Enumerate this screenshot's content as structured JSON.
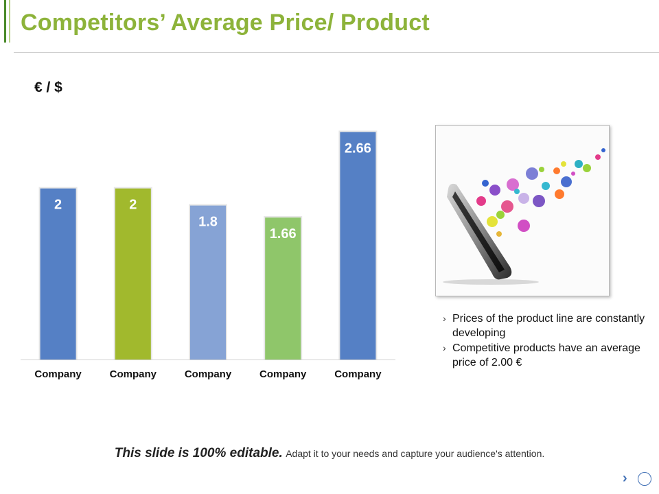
{
  "slide": {
    "title": "Competitors’ Average Price/ Product"
  },
  "chart_data": {
    "type": "bar",
    "title": "",
    "ylabel": "€ / $",
    "xlabel": "",
    "categories": [
      "Company",
      "Company",
      "Company",
      "Company",
      "Company"
    ],
    "values": [
      2,
      2,
      1.8,
      1.66,
      2.66
    ],
    "data_labels": [
      "2",
      "2",
      "1.8",
      "1.66",
      "2.66"
    ],
    "colors": [
      "#5580c5",
      "#a1b92d",
      "#86a3d5",
      "#8fc66a",
      "#5580c5"
    ],
    "ylim": [
      0,
      3
    ],
    "grid": false,
    "legend": "none"
  },
  "bullets": [
    {
      "text": "Prices of the product line are constantly developing"
    },
    {
      "text": "Competitive products have an average price of 2.00 €"
    }
  ],
  "footer": {
    "strong": "This slide is 100% editable.",
    "rest": "Adapt it to your needs and capture your audience's attention."
  },
  "icons": {
    "bullet": "chevron-right-icon",
    "next": "chevron-right-icon",
    "nav": "circle-icon"
  }
}
